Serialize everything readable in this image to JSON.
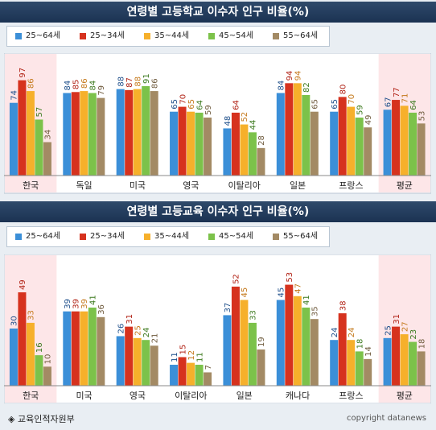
{
  "colors": [
    "#3b8fd8",
    "#d6321e",
    "#f6b02b",
    "#7cc24a",
    "#a38a64"
  ],
  "footer": {
    "source": "◈ 교육인적자원부",
    "copyright": "copyright datanews"
  },
  "chart_data": [
    {
      "type": "bar",
      "title": "연령별 고등학교 이수자 인구 비율(%)",
      "categories": [
        "한국",
        "독일",
        "미국",
        "영국",
        "이탈리아",
        "일본",
        "프랑스",
        "평균"
      ],
      "highlighted": [
        "한국",
        "평균"
      ],
      "ylim": [
        0,
        100
      ],
      "legend_position": "top-left",
      "series": [
        {
          "name": "25~64세",
          "values": [
            74,
            84,
            88,
            65,
            48,
            84,
            65,
            67
          ]
        },
        {
          "name": "25~34세",
          "values": [
            97,
            85,
            87,
            70,
            64,
            94,
            80,
            77
          ]
        },
        {
          "name": "35~44세",
          "values": [
            86,
            86,
            88,
            65,
            52,
            94,
            70,
            71
          ]
        },
        {
          "name": "45~54세",
          "values": [
            57,
            84,
            91,
            64,
            44,
            82,
            59,
            64
          ]
        },
        {
          "name": "55~64세",
          "values": [
            34,
            79,
            86,
            59,
            28,
            65,
            49,
            53
          ]
        }
      ]
    },
    {
      "type": "bar",
      "title": "연령별 고등교육 이수자 인구 비율(%)",
      "categories": [
        "한국",
        "미국",
        "영국",
        "이탈리아",
        "일본",
        "캐나다",
        "프랑스",
        "평균"
      ],
      "highlighted": [
        "한국",
        "평균"
      ],
      "ylim": [
        0,
        60
      ],
      "legend_position": "top-left",
      "series": [
        {
          "name": "25~64세",
          "values": [
            30,
            39,
            26,
            11,
            37,
            45,
            24,
            25
          ]
        },
        {
          "name": "25~34세",
          "values": [
            49,
            39,
            31,
            15,
            52,
            53,
            38,
            31
          ]
        },
        {
          "name": "35~44세",
          "values": [
            33,
            39,
            25,
            12,
            45,
            47,
            24,
            27
          ]
        },
        {
          "name": "45~54세",
          "values": [
            16,
            41,
            24,
            11,
            33,
            41,
            18,
            23
          ]
        },
        {
          "name": "55~64세",
          "values": [
            10,
            36,
            21,
            7,
            19,
            35,
            14,
            18
          ]
        }
      ]
    }
  ]
}
